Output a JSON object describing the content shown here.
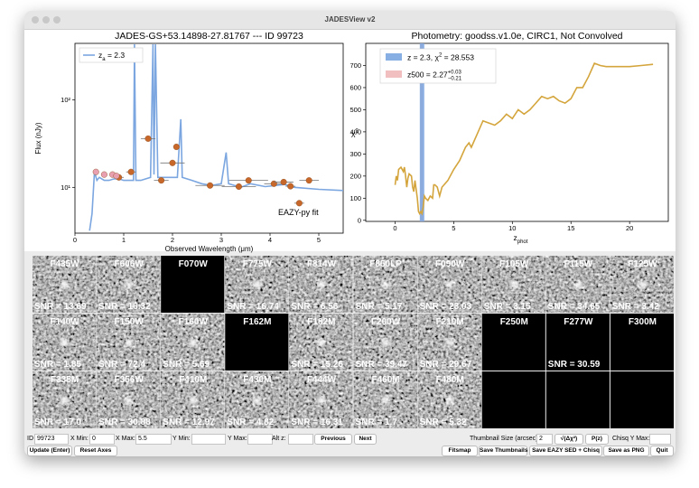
{
  "window": {
    "title": "JADESView v2"
  },
  "chart_data": [
    {
      "type": "sed",
      "title": "JADES-GS+53.14898-27.81767 --- ID 99723",
      "xlabel": "Observed Wavelength (μm)",
      "ylabel": "Flux (nJy)",
      "xlim": [
        0,
        5.5
      ],
      "ylim": [
        3,
        440
      ],
      "log_y": true,
      "xticks": [
        0,
        1,
        2,
        3,
        4,
        5
      ],
      "yticks": [
        {
          "value": 10,
          "label": "10¹"
        },
        {
          "value": 100,
          "label": "10²"
        }
      ],
      "annotation": "EAZY-py fit",
      "series": [
        {
          "name": [
            "z",
            "a",
            " = 2.3"
          ],
          "color": "#7ba6e0",
          "x": [
            0.3,
            0.35,
            0.4,
            0.45,
            0.5,
            0.6,
            0.7,
            0.8,
            0.9,
            1.0,
            1.1,
            1.2,
            1.22,
            1.25,
            1.35,
            1.55,
            1.6,
            1.62,
            1.65,
            1.7,
            1.9,
            2.1,
            2.17,
            2.2,
            2.4,
            2.6,
            2.8,
            3.0,
            3.1,
            3.15,
            3.4,
            3.6,
            3.9,
            4.1,
            4.3,
            4.5,
            5.0,
            5.5
          ],
          "values": [
            3.2,
            5,
            15,
            12,
            13,
            12,
            12,
            12.5,
            12.5,
            12,
            12,
            12,
            430,
            12,
            12,
            13,
            430,
            14,
            430,
            13,
            13,
            13,
            60,
            13,
            12,
            11,
            10.5,
            11,
            25,
            11,
            10,
            11,
            10.2,
            10.5,
            10.8,
            10,
            9.5,
            9.2
          ]
        },
        {
          "color": "#c8672a",
          "x": [
            0.9,
            1.15,
            1.5,
            1.77,
            2.0,
            2.08,
            2.77,
            3.36,
            3.56,
            4.08,
            4.28,
            4.42,
            4.6,
            4.8
          ],
          "xerr": [
            0.1,
            0.1,
            0.15,
            0.15,
            0.25,
            0.05,
            0.3,
            0.35,
            0.4,
            0.2,
            0.2,
            0.1,
            0.1,
            0.2
          ],
          "values": [
            13,
            15,
            36,
            12,
            19,
            29,
            10.5,
            10.2,
            12,
            11,
            11.5,
            10.3,
            6.6,
            12
          ]
        },
        {
          "color": "#e8a0b0",
          "x": [
            0.43,
            0.6,
            0.77,
            0.85
          ],
          "values": [
            15,
            14,
            14,
            13.5
          ]
        }
      ]
    },
    {
      "type": "line",
      "title": "Photometry: goodss.v1.0e, CIRC1, Not Convolved",
      "xlabel": [
        "z",
        "phot"
      ],
      "ylabel": [
        "χ",
        "2"
      ],
      "xlim": [
        -2.5,
        23.3
      ],
      "ylim": [
        -5,
        800
      ],
      "xticks": [
        0,
        5,
        10,
        15,
        20
      ],
      "yticks": [
        0,
        100,
        200,
        300,
        400,
        500,
        600,
        700
      ],
      "series": [
        {
          "color": "#d4a53c",
          "x": [
            0.0,
            0.1,
            0.2,
            0.3,
            0.5,
            0.7,
            0.8,
            0.9,
            1.0,
            1.1,
            1.2,
            1.4,
            1.5,
            1.6,
            1.7,
            1.8,
            1.9,
            2.0,
            2.1,
            2.2,
            2.3,
            2.4,
            2.5,
            2.6,
            2.8,
            3.0,
            3.2,
            3.3,
            3.4,
            3.6,
            3.8,
            4.0,
            4.5,
            5.0,
            5.5,
            6.0,
            6.3,
            6.5,
            7.0,
            7.5,
            8.0,
            8.5,
            9.0,
            9.5,
            10.0,
            10.5,
            11.0,
            11.5,
            12.0,
            12.5,
            13.0,
            13.5,
            14.0,
            14.5,
            15.0,
            15.5,
            16.0,
            16.5,
            17.0,
            17.5,
            18,
            19,
            20,
            21,
            22
          ],
          "values": [
            160,
            200,
            180,
            230,
            240,
            220,
            240,
            200,
            150,
            190,
            210,
            200,
            150,
            130,
            180,
            140,
            100,
            40,
            30,
            40,
            30,
            60,
            110,
            100,
            90,
            110,
            100,
            160,
            160,
            150,
            110,
            150,
            180,
            230,
            270,
            330,
            350,
            330,
            390,
            450,
            440,
            430,
            450,
            480,
            460,
            500,
            480,
            500,
            530,
            560,
            550,
            560,
            540,
            530,
            550,
            600,
            600,
            650,
            710,
            700,
            695,
            695,
            695,
            700,
            705
          ]
        }
      ],
      "spans": [
        {
          "name": [
            "z500 = 2.27",
            "+0.03",
            "−0.21"
          ],
          "color": "#f0b8b8",
          "x": 2.27
        },
        {
          "name": [
            "z = 2.3, χ",
            "2",
            " = 28.553"
          ],
          "color": "#7ba6e0",
          "x": 2.3
        }
      ]
    }
  ],
  "thumbnails": [
    {
      "filter": "F435W",
      "snr": "SNR = 13.69",
      "image": true
    },
    {
      "filter": "F606W",
      "snr": "SNR = 16.32",
      "image": true
    },
    {
      "filter": "F070W",
      "image": false
    },
    {
      "filter": "F775W",
      "snr": "SNR = 16.74",
      "image": true
    },
    {
      "filter": "F814W",
      "snr": "SNR = 6.56",
      "image": true
    },
    {
      "filter": "F850LP",
      "snr": "SNR = 5.17",
      "image": true
    },
    {
      "filter": "F090W",
      "snr": "SNR = 23.03",
      "image": true
    },
    {
      "filter": "F105W",
      "snr": "SNR = 3.15",
      "image": true
    },
    {
      "filter": "F115W",
      "snr": "SNR = 34.65",
      "image": true
    },
    {
      "filter": "F125W",
      "snr": "SNR = 3.42",
      "image": true
    },
    {
      "filter": "F140W",
      "snr": "SNR = 1.85",
      "image": true
    },
    {
      "filter": "F150W",
      "snr": "SNR = 72.4",
      "image": true
    },
    {
      "filter": "F160W",
      "snr": "SNR = 5.69",
      "image": true
    },
    {
      "filter": "F162M",
      "image": false
    },
    {
      "filter": "F182M",
      "snr": "SNR = 15.26",
      "image": true
    },
    {
      "filter": "F200W",
      "snr": "SNR = 39.47",
      "image": true
    },
    {
      "filter": "F210M",
      "snr": "SNR = 29.67",
      "image": true
    },
    {
      "filter": "F250M",
      "image": false
    },
    {
      "filter": "F277W",
      "snr": "SNR = 30.59",
      "image": false
    },
    {
      "filter": "F300M",
      "image": false
    },
    {
      "filter": "F335M",
      "snr": "SNR = 17.0",
      "image": true
    },
    {
      "filter": "F356W",
      "snr": "SNR = 30.88",
      "image": true
    },
    {
      "filter": "F410M",
      "snr": "SNR = 12.97",
      "image": true
    },
    {
      "filter": "F430M",
      "snr": "SNR = 4.82",
      "image": true
    },
    {
      "filter": "F444W",
      "snr": "SNR = 16.31",
      "image": true
    },
    {
      "filter": "F460M",
      "snr": "SNR = 1.7",
      "image": true
    },
    {
      "filter": "F480M",
      "snr": "SNR = 5.32",
      "image": true
    }
  ],
  "controls": {
    "id_label": "ID",
    "id_value": "99723",
    "x_min_label": "X Min:",
    "x_min_value": "0",
    "x_max_label": "X Max:",
    "x_max_value": "5.5",
    "y_min_label": "Y Min:",
    "y_max_label": "Y Max:",
    "alt_z_label": "Alt z:",
    "previous": "Previous",
    "next": "Next",
    "thumb_size_label": "Thumbnail Size (arcsec):",
    "thumb_size_value": "2",
    "sqrt_dchi2": "√(Δχ²)",
    "pz": "P(z)",
    "chisq_ymax_label": "Chisq Y Max:",
    "update": "Update (Enter)",
    "reset_axes": "Reset Axes",
    "fitsmap": "Fitsmap",
    "save_thumbnails": "Save Thumbnails",
    "save_eazy": "Save EAZY SED + Chisq",
    "save_png": "Save as PNG",
    "quit": "Quit"
  }
}
